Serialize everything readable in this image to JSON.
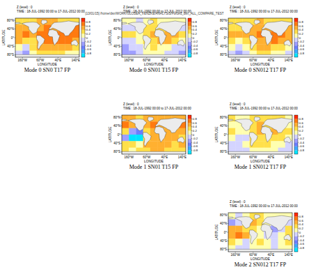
{
  "figure_label": "[13/01/15] /home/dsn/WORK/GLOSEA_VENZKE/ANALYSIS/Forced_dsn_ALL_COMPARE_TEST",
  "chart_data": [
    {
      "type": "heatmap",
      "title": "Mode 0 SN0 T17 FP",
      "annotations": [
        "Z (level) : 0",
        "TIME : 18-JUL-1992 00:00 to 17-JUL-2012 00:00"
      ],
      "x_label": "LONGITUDE",
      "y_label": "LATITUDE",
      "x": [
        -180,
        -140,
        -100,
        -60,
        -20,
        20,
        60,
        100,
        140
      ],
      "y": [
        75,
        45,
        15,
        -15,
        -45,
        -75
      ],
      "z": [
        [
          0.3,
          0.3,
          0.2,
          0.4,
          0.5,
          0.4,
          0.3,
          0.3,
          0.3
        ],
        [
          0.5,
          0.4,
          0.3,
          0.5,
          0.6,
          0.5,
          0.4,
          0.5,
          0.6
        ],
        [
          0.5,
          0.6,
          0.5,
          0.6,
          0.7,
          0.6,
          0.7,
          0.7,
          0.6
        ],
        [
          0.4,
          0.2,
          0.3,
          0.5,
          0.6,
          0.6,
          0.7,
          0.6,
          0.5
        ],
        [
          0.1,
          -0.1,
          0.2,
          0.4,
          0.5,
          0.5,
          0.5,
          0.4,
          0.3
        ],
        [
          -0.2,
          -0.3,
          0.0,
          0.2,
          0.3,
          0.3,
          0.2,
          0.1,
          0.0
        ]
      ],
      "xlim": [
        -200,
        160
      ],
      "ylim": [
        -90,
        90
      ],
      "xticks": [
        {
          "value": -160,
          "label": "160°W"
        },
        {
          "value": -60,
          "label": "60°W"
        },
        {
          "value": 40,
          "label": "40°E"
        },
        {
          "value": 140,
          "label": "140°E"
        }
      ],
      "yticks": [
        {
          "value": 80,
          "label": "80°N"
        },
        {
          "value": 40,
          "label": "40°N"
        },
        {
          "value": 0,
          "label": "0°"
        },
        {
          "value": -40,
          "label": "40°S"
        },
        {
          "value": -80,
          "label": "80°S"
        }
      ],
      "colorbar": {
        "range": [
          -1,
          1
        ],
        "ticks": [
          0.8,
          0.6,
          0.4,
          0.2,
          0,
          -0.2,
          -0.4,
          -0.6,
          -0.8
        ],
        "colors": [
          "#00e5ff",
          "#3fa9ff",
          "#6b7fff",
          "#9f9fff",
          "#d4d4ff",
          "#ffffb0",
          "#ffe04a",
          "#ffb030",
          "#ff7a10",
          "#ff2a00"
        ]
      }
    },
    {
      "type": "heatmap",
      "title": "Mode 0 SN01 T15 FP",
      "annotations": [
        "Z (level) : 0",
        "TIME : 18-JUL-1992 00:00 to 17-JUL-2012 00:00"
      ],
      "x_label": "LONGITUDE",
      "y_label": "LATITUDE",
      "x": [
        -180,
        -140,
        -100,
        -60,
        -20,
        20,
        60,
        100,
        140
      ],
      "y": [
        75,
        45,
        15,
        -15,
        -45,
        -75
      ],
      "z": [
        [
          0.1,
          0.0,
          -0.1,
          0.1,
          0.2,
          0.1,
          0.0,
          0.1,
          0.0
        ],
        [
          -0.2,
          -0.1,
          0.1,
          0.2,
          0.3,
          0.2,
          0.3,
          0.2,
          -0.1
        ],
        [
          0.2,
          0.3,
          0.1,
          0.3,
          0.4,
          0.3,
          0.5,
          0.4,
          0.2
        ],
        [
          -0.1,
          -0.2,
          0.0,
          0.2,
          0.3,
          0.4,
          0.4,
          0.3,
          0.0
        ],
        [
          -0.3,
          -0.2,
          -0.1,
          0.1,
          0.2,
          0.1,
          0.0,
          -0.1,
          -0.2
        ],
        [
          -0.3,
          -0.3,
          -0.2,
          0.0,
          0.1,
          0.0,
          -0.1,
          -0.2,
          -0.3
        ]
      ],
      "xlim": [
        -200,
        160
      ],
      "ylim": [
        -90,
        90
      ],
      "xticks": [
        {
          "value": -160,
          "label": "160°W"
        },
        {
          "value": -60,
          "label": "60°W"
        },
        {
          "value": 40,
          "label": "40°E"
        },
        {
          "value": 140,
          "label": "140°E"
        }
      ],
      "yticks": [
        {
          "value": 80,
          "label": "80°N"
        },
        {
          "value": 40,
          "label": "40°N"
        },
        {
          "value": 0,
          "label": "0°"
        },
        {
          "value": -40,
          "label": "40°S"
        },
        {
          "value": -80,
          "label": "80°S"
        }
      ],
      "colorbar": {
        "range": [
          -1,
          1
        ],
        "ticks": [
          0.8,
          0.6,
          0.4,
          0.2,
          0,
          -0.2,
          -0.4,
          -0.6,
          -0.8
        ],
        "colors": [
          "#00e5ff",
          "#3fa9ff",
          "#6b7fff",
          "#9f9fff",
          "#d4d4ff",
          "#ffffb0",
          "#ffe04a",
          "#ffb030",
          "#ff7a10",
          "#ff2a00"
        ]
      }
    },
    {
      "type": "heatmap",
      "title": "Mode 0 SN012 T17 FP",
      "annotations": [
        "Z (level) : 0",
        "TIME : 18-JUL-1992 00:00 to 17-JUL-2012 00:00"
      ],
      "x_label": "LONGITUDE",
      "y_label": "LATITUDE",
      "x": [
        -180,
        -140,
        -100,
        -60,
        -20,
        20,
        60,
        100,
        140
      ],
      "y": [
        75,
        45,
        15,
        -15,
        -45,
        -75
      ],
      "z": [
        [
          0.3,
          0.2,
          0.2,
          0.3,
          0.4,
          0.3,
          0.3,
          0.3,
          0.2
        ],
        [
          0.3,
          0.2,
          0.3,
          0.4,
          0.5,
          0.4,
          0.4,
          0.4,
          0.4
        ],
        [
          0.5,
          0.5,
          0.4,
          0.5,
          0.6,
          0.5,
          0.6,
          0.6,
          0.5
        ],
        [
          0.3,
          0.1,
          0.2,
          0.4,
          0.5,
          0.5,
          0.6,
          0.5,
          0.4
        ],
        [
          0.0,
          -0.2,
          0.0,
          0.3,
          0.4,
          0.4,
          0.3,
          0.2,
          0.1
        ],
        [
          -0.1,
          -0.3,
          -0.1,
          0.1,
          0.2,
          0.2,
          0.1,
          0.0,
          -0.1
        ]
      ],
      "xlim": [
        -200,
        160
      ],
      "ylim": [
        -90,
        90
      ],
      "xticks": [
        {
          "value": -160,
          "label": "160°W"
        },
        {
          "value": -60,
          "label": "60°W"
        },
        {
          "value": 40,
          "label": "40°E"
        },
        {
          "value": 140,
          "label": "140°E"
        }
      ],
      "yticks": [
        {
          "value": 80,
          "label": "80°N"
        },
        {
          "value": 40,
          "label": "40°N"
        },
        {
          "value": 0,
          "label": "0°"
        },
        {
          "value": -40,
          "label": "40°S"
        },
        {
          "value": -80,
          "label": "80°S"
        }
      ],
      "colorbar": {
        "range": [
          -1,
          1
        ],
        "ticks": [
          0.8,
          0.6,
          0.4,
          0.2,
          0,
          -0.2,
          -0.4,
          -0.6,
          -0.8
        ],
        "colors": [
          "#00e5ff",
          "#3fa9ff",
          "#6b7fff",
          "#9f9fff",
          "#d4d4ff",
          "#ffffb0",
          "#ffe04a",
          "#ffb030",
          "#ff7a10",
          "#ff2a00"
        ]
      }
    },
    {
      "type": "heatmap",
      "title": "Mode 1 SN01 T15 FP",
      "annotations": [
        "Z (level) : 0",
        "TIME : 18-JUL-1992 00:00 to 17-JUL-2012 00:00"
      ],
      "x_label": "LONGITUDE",
      "y_label": "LATITUDE",
      "x": [
        -180,
        -140,
        -100,
        -60,
        -20,
        20,
        60,
        100,
        140
      ],
      "y": [
        75,
        45,
        15,
        -15,
        -45,
        -75
      ],
      "z": [
        [
          0.4,
          0.4,
          0.3,
          0.5,
          0.5,
          0.4,
          0.4,
          0.4,
          0.4
        ],
        [
          0.6,
          0.5,
          0.4,
          0.5,
          0.6,
          0.5,
          0.5,
          0.5,
          0.6
        ],
        [
          0.2,
          -0.4,
          -0.6,
          0.3,
          0.5,
          0.4,
          0.5,
          0.5,
          0.4
        ],
        [
          -0.3,
          -0.8,
          -0.9,
          0.2,
          0.5,
          0.5,
          0.4,
          0.4,
          0.3
        ],
        [
          0.3,
          0.2,
          0.1,
          0.4,
          0.5,
          0.5,
          0.4,
          0.3,
          0.4
        ],
        [
          0.2,
          0.1,
          0.2,
          0.3,
          0.4,
          0.4,
          0.3,
          0.2,
          0.2
        ]
      ],
      "xlim": [
        -200,
        160
      ],
      "ylim": [
        -90,
        90
      ],
      "xticks": [
        {
          "value": -160,
          "label": "160°W"
        },
        {
          "value": -60,
          "label": "60°W"
        },
        {
          "value": 40,
          "label": "40°E"
        },
        {
          "value": 140,
          "label": "140°E"
        }
      ],
      "yticks": [
        {
          "value": 80,
          "label": "80°N"
        },
        {
          "value": 40,
          "label": "40°N"
        },
        {
          "value": 0,
          "label": "0°"
        },
        {
          "value": -40,
          "label": "40°S"
        },
        {
          "value": -80,
          "label": "80°S"
        }
      ],
      "colorbar": {
        "range": [
          -1,
          1
        ],
        "ticks": [
          0.8,
          0.6,
          0.4,
          0.2,
          0,
          -0.2,
          -0.4,
          -0.6,
          -0.8
        ],
        "colors": [
          "#00e5ff",
          "#3fa9ff",
          "#6b7fff",
          "#9f9fff",
          "#d4d4ff",
          "#ffffb0",
          "#ffe04a",
          "#ffb030",
          "#ff7a10",
          "#ff2a00"
        ]
      }
    },
    {
      "type": "heatmap",
      "title": "Mode 1 SN012 T17 FP",
      "annotations": [
        "Z (level) : 0",
        "TIME : 18-JUL-1992 00:00 to 17-JUL-2012 00:00"
      ],
      "x_label": "LONGITUDE",
      "y_label": "LATITUDE",
      "x": [
        -180,
        -140,
        -100,
        -60,
        -20,
        20,
        60,
        100,
        140
      ],
      "y": [
        75,
        45,
        15,
        -15,
        -45,
        -75
      ],
      "z": [
        [
          0.2,
          0.1,
          0.1,
          0.2,
          0.3,
          0.2,
          0.2,
          0.2,
          0.1
        ],
        [
          0.1,
          0.0,
          0.2,
          0.3,
          0.4,
          0.3,
          0.3,
          0.2,
          0.1
        ],
        [
          0.3,
          0.1,
          0.0,
          0.3,
          0.4,
          0.3,
          0.4,
          0.3,
          0.2
        ],
        [
          0.1,
          -0.1,
          -0.2,
          0.2,
          0.3,
          0.3,
          0.3,
          0.2,
          0.1
        ],
        [
          -0.1,
          -0.2,
          0.0,
          0.2,
          0.3,
          0.2,
          0.1,
          0.0,
          -0.1
        ],
        [
          -0.2,
          -0.2,
          -0.1,
          0.1,
          0.1,
          0.1,
          0.0,
          -0.1,
          -0.2
        ]
      ],
      "xlim": [
        -200,
        160
      ],
      "ylim": [
        -90,
        90
      ],
      "xticks": [
        {
          "value": -160,
          "label": "160°W"
        },
        {
          "value": -60,
          "label": "60°W"
        },
        {
          "value": 40,
          "label": "40°E"
        },
        {
          "value": 140,
          "label": "140°E"
        }
      ],
      "yticks": [
        {
          "value": 80,
          "label": "80°N"
        },
        {
          "value": 40,
          "label": "40°N"
        },
        {
          "value": 0,
          "label": "0°"
        },
        {
          "value": -40,
          "label": "40°S"
        },
        {
          "value": -80,
          "label": "80°S"
        }
      ],
      "colorbar": {
        "range": [
          -1,
          1
        ],
        "ticks": [
          0.8,
          0.6,
          0.4,
          0.2,
          0,
          -0.2,
          -0.4,
          -0.6,
          -0.8
        ],
        "colors": [
          "#00e5ff",
          "#3fa9ff",
          "#6b7fff",
          "#9f9fff",
          "#d4d4ff",
          "#ffffb0",
          "#ffe04a",
          "#ffb030",
          "#ff7a10",
          "#ff2a00"
        ]
      }
    },
    {
      "type": "heatmap",
      "title": "Mode 2 SN012 T17 FP",
      "annotations": [
        "Z (level) : 0",
        "TIME : 18-JUL-1992 00:00 to 17-JUL-2012 00:00"
      ],
      "x_label": "LONGITUDE",
      "y_label": "LATITUDE",
      "x": [
        -180,
        -140,
        -100,
        -60,
        -20,
        20,
        60,
        100,
        140
      ],
      "y": [
        75,
        45,
        15,
        -15,
        -45,
        -75
      ],
      "z": [
        [
          0.0,
          -0.1,
          0.1,
          0.3,
          0.2,
          0.1,
          0.0,
          0.1,
          0.0
        ],
        [
          -0.3,
          -0.2,
          0.2,
          0.4,
          0.3,
          0.1,
          -0.1,
          0.0,
          -0.2
        ],
        [
          0.4,
          0.5,
          0.3,
          0.2,
          0.1,
          -0.2,
          -0.3,
          -0.1,
          0.2
        ],
        [
          0.5,
          0.6,
          0.4,
          0.1,
          0.0,
          -0.1,
          -0.2,
          0.0,
          0.3
        ],
        [
          0.2,
          0.1,
          -0.1,
          0.1,
          0.2,
          0.0,
          -0.1,
          0.1,
          0.2
        ],
        [
          0.0,
          -0.1,
          -0.2,
          0.0,
          0.1,
          0.0,
          -0.1,
          0.0,
          0.1
        ]
      ],
      "xlim": [
        -200,
        160
      ],
      "ylim": [
        -90,
        90
      ],
      "xticks": [
        {
          "value": -160,
          "label": "160°W"
        },
        {
          "value": -60,
          "label": "60°W"
        },
        {
          "value": 40,
          "label": "40°E"
        },
        {
          "value": 140,
          "label": "140°E"
        }
      ],
      "yticks": [
        {
          "value": 80,
          "label": "80°N"
        },
        {
          "value": 40,
          "label": "40°N"
        },
        {
          "value": 0,
          "label": "0°"
        },
        {
          "value": -40,
          "label": "40°S"
        },
        {
          "value": -80,
          "label": "80°S"
        }
      ],
      "colorbar": {
        "range": [
          -1,
          1
        ],
        "ticks": [
          0.8,
          0.6,
          0.4,
          0.2,
          0,
          -0.2,
          -0.4,
          -0.6,
          -0.8
        ],
        "colors": [
          "#00e5ff",
          "#3fa9ff",
          "#6b7fff",
          "#9f9fff",
          "#d4d4ff",
          "#ffffb0",
          "#ffe04a",
          "#ffb030",
          "#ff7a10",
          "#ff2a00"
        ]
      }
    }
  ]
}
